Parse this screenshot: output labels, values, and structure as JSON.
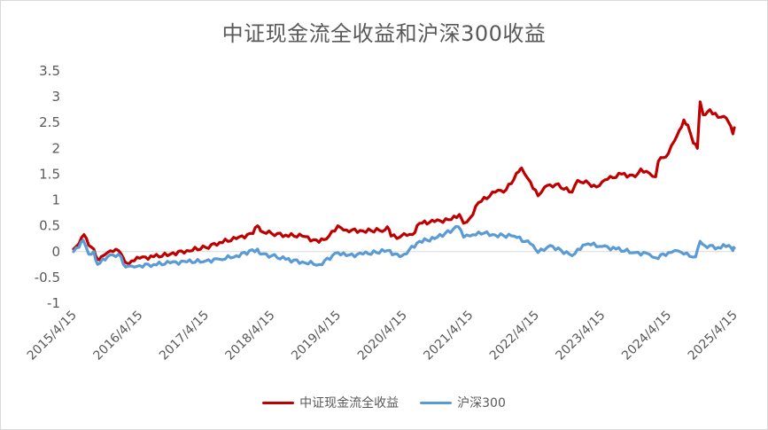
{
  "chart_data": {
    "type": "line",
    "title": "中证现金流全收益和沪深300收益",
    "xlabel": "",
    "ylabel": "",
    "ylim": [
      -1,
      3.5
    ],
    "y_ticks": [
      "3.5",
      "3",
      "2.5",
      "2",
      "1.5",
      "1",
      "0.5",
      "0",
      "-0.5",
      "-1"
    ],
    "x_ticks": [
      "2015/4/15",
      "2016/4/15",
      "2017/4/15",
      "2018/4/15",
      "2019/4/15",
      "2020/4/15",
      "2021/4/15",
      "2022/4/15",
      "2023/4/15",
      "2024/4/15",
      "2025/4/15"
    ],
    "grid": false,
    "legend_position": "bottom",
    "series": [
      {
        "name": "中证现金流全收益",
        "color": "#c00000",
        "points": [
          [
            "2015-04-15",
            0.05
          ],
          [
            "2015-05-15",
            0.15
          ],
          [
            "2015-06-12",
            0.33
          ],
          [
            "2015-07-08",
            0.12
          ],
          [
            "2015-08-05",
            0.05
          ],
          [
            "2015-08-26",
            -0.15
          ],
          [
            "2015-09-15",
            -0.1
          ],
          [
            "2015-10-20",
            -0.02
          ],
          [
            "2015-11-20",
            0.0
          ],
          [
            "2015-12-20",
            0.02
          ],
          [
            "2016-01-15",
            -0.12
          ],
          [
            "2016-02-01",
            -0.22
          ],
          [
            "2016-03-01",
            -0.18
          ],
          [
            "2016-04-15",
            -0.13
          ],
          [
            "2016-07-01",
            -0.1
          ],
          [
            "2016-10-01",
            -0.05
          ],
          [
            "2017-01-01",
            0.02
          ],
          [
            "2017-04-15",
            0.08
          ],
          [
            "2017-07-01",
            0.18
          ],
          [
            "2017-10-01",
            0.25
          ],
          [
            "2018-01-01",
            0.35
          ],
          [
            "2018-01-26",
            0.5
          ],
          [
            "2018-02-12",
            0.4
          ],
          [
            "2018-04-15",
            0.35
          ],
          [
            "2018-07-01",
            0.32
          ],
          [
            "2018-10-01",
            0.3
          ],
          [
            "2019-01-01",
            0.18
          ],
          [
            "2019-02-25",
            0.3
          ],
          [
            "2019-04-15",
            0.5
          ],
          [
            "2019-06-01",
            0.42
          ],
          [
            "2019-09-01",
            0.4
          ],
          [
            "2020-01-01",
            0.42
          ],
          [
            "2020-01-14",
            0.48
          ],
          [
            "2020-02-03",
            0.3
          ],
          [
            "2020-03-23",
            0.28
          ],
          [
            "2020-04-15",
            0.35
          ],
          [
            "2020-06-01",
            0.33
          ],
          [
            "2020-07-10",
            0.55
          ],
          [
            "2020-10-01",
            0.58
          ],
          [
            "2021-01-01",
            0.62
          ],
          [
            "2021-02-15",
            0.72
          ],
          [
            "2021-03-10",
            0.55
          ],
          [
            "2021-04-15",
            0.65
          ],
          [
            "2021-06-01",
            0.95
          ],
          [
            "2021-09-01",
            1.15
          ],
          [
            "2021-11-01",
            1.2
          ],
          [
            "2022-01-10",
            1.55
          ],
          [
            "2022-01-25",
            1.62
          ],
          [
            "2022-03-15",
            1.35
          ],
          [
            "2022-04-26",
            1.08
          ],
          [
            "2022-06-01",
            1.25
          ],
          [
            "2022-08-01",
            1.3
          ],
          [
            "2022-10-31",
            1.15
          ],
          [
            "2022-12-01",
            1.38
          ],
          [
            "2023-02-01",
            1.32
          ],
          [
            "2023-03-15",
            1.25
          ],
          [
            "2023-04-15",
            1.35
          ],
          [
            "2023-05-15",
            1.4
          ],
          [
            "2023-08-01",
            1.5
          ],
          [
            "2023-10-15",
            1.45
          ],
          [
            "2023-11-15",
            1.6
          ],
          [
            "2024-01-01",
            1.52
          ],
          [
            "2024-02-05",
            1.45
          ],
          [
            "2024-02-20",
            1.75
          ],
          [
            "2024-04-15",
            1.9
          ],
          [
            "2024-05-20",
            2.15
          ],
          [
            "2024-06-15",
            2.35
          ],
          [
            "2024-07-10",
            2.55
          ],
          [
            "2024-08-01",
            2.45
          ],
          [
            "2024-09-01",
            2.1
          ],
          [
            "2024-09-23",
            2.0
          ],
          [
            "2024-10-08",
            2.9
          ],
          [
            "2024-10-25",
            2.65
          ],
          [
            "2024-12-01",
            2.75
          ],
          [
            "2025-01-15",
            2.6
          ],
          [
            "2025-02-15",
            2.62
          ],
          [
            "2025-03-15",
            2.5
          ],
          [
            "2025-04-07",
            2.28
          ],
          [
            "2025-04-15",
            2.4
          ]
        ]
      },
      {
        "name": "沪深300",
        "color": "#5b9bd5",
        "points": [
          [
            "2015-04-15",
            0.0
          ],
          [
            "2015-05-15",
            0.08
          ],
          [
            "2015-06-08",
            0.22
          ],
          [
            "2015-07-08",
            -0.05
          ],
          [
            "2015-08-05",
            0.0
          ],
          [
            "2015-08-26",
            -0.25
          ],
          [
            "2015-10-20",
            -0.1
          ],
          [
            "2015-12-20",
            -0.05
          ],
          [
            "2016-01-28",
            -0.3
          ],
          [
            "2016-03-01",
            -0.28
          ],
          [
            "2016-04-15",
            -0.27
          ],
          [
            "2016-07-01",
            -0.25
          ],
          [
            "2016-10-01",
            -0.22
          ],
          [
            "2017-01-01",
            -0.2
          ],
          [
            "2017-04-15",
            -0.18
          ],
          [
            "2017-07-01",
            -0.15
          ],
          [
            "2017-10-01",
            -0.08
          ],
          [
            "2018-01-26",
            0.05
          ],
          [
            "2018-02-12",
            -0.05
          ],
          [
            "2018-04-15",
            -0.08
          ],
          [
            "2018-07-01",
            -0.15
          ],
          [
            "2018-10-01",
            -0.2
          ],
          [
            "2019-01-03",
            -0.25
          ],
          [
            "2019-04-15",
            -0.02
          ],
          [
            "2019-06-01",
            -0.08
          ],
          [
            "2019-09-01",
            -0.05
          ],
          [
            "2020-01-14",
            0.02
          ],
          [
            "2020-03-23",
            -0.1
          ],
          [
            "2020-04-15",
            -0.05
          ],
          [
            "2020-07-10",
            0.2
          ],
          [
            "2020-10-01",
            0.25
          ],
          [
            "2021-02-10",
            0.48
          ],
          [
            "2021-03-10",
            0.28
          ],
          [
            "2021-04-15",
            0.3
          ],
          [
            "2021-06-01",
            0.38
          ],
          [
            "2021-09-01",
            0.32
          ],
          [
            "2021-12-15",
            0.3
          ],
          [
            "2022-03-15",
            0.15
          ],
          [
            "2022-04-26",
            -0.02
          ],
          [
            "2022-07-01",
            0.12
          ],
          [
            "2022-10-31",
            -0.08
          ],
          [
            "2022-12-01",
            0.05
          ],
          [
            "2023-01-28",
            0.15
          ],
          [
            "2023-04-15",
            0.1
          ],
          [
            "2023-07-01",
            0.05
          ],
          [
            "2023-10-15",
            -0.02
          ],
          [
            "2024-01-01",
            -0.05
          ],
          [
            "2024-02-05",
            -0.12
          ],
          [
            "2024-04-15",
            -0.02
          ],
          [
            "2024-05-20",
            0.02
          ],
          [
            "2024-07-10",
            -0.05
          ],
          [
            "2024-09-13",
            -0.1
          ],
          [
            "2024-10-08",
            0.2
          ],
          [
            "2024-11-01",
            0.12
          ],
          [
            "2025-01-15",
            0.08
          ],
          [
            "2025-03-15",
            0.12
          ],
          [
            "2025-04-07",
            0.02
          ],
          [
            "2025-04-15",
            0.07
          ]
        ]
      }
    ]
  }
}
